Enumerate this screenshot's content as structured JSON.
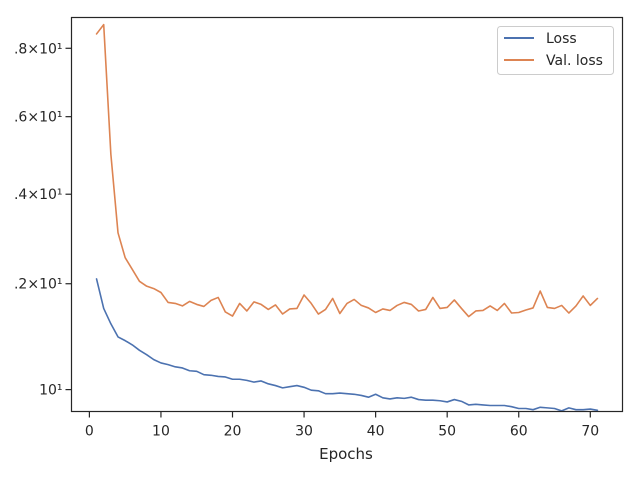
{
  "chart_data": {
    "type": "line",
    "xlabel": "Epochs",
    "ylabel": "",
    "title": "",
    "xlim": [
      -2.5,
      74.5
    ],
    "ylim": [
      9.63,
      18.98
    ],
    "yscale": "log",
    "grid": false,
    "legend_position": "top-right",
    "x_ticks": [
      0,
      10,
      20,
      30,
      40,
      50,
      60,
      70
    ],
    "x_tick_labels": [
      "0",
      "10",
      "20",
      "30",
      "40",
      "50",
      "60",
      "70"
    ],
    "y_ticks": [
      10,
      12,
      14,
      16,
      18
    ],
    "y_tick_labels": [
      "10¹",
      ".2×10¹",
      ".4×10¹",
      ".6×10¹",
      ".8×10¹"
    ],
    "series": [
      {
        "name": "Loss",
        "color": "#4c72b0",
        "x": [
          1,
          2,
          3,
          4,
          5,
          6,
          7,
          8,
          9,
          10,
          11,
          12,
          13,
          14,
          15,
          16,
          17,
          18,
          19,
          20,
          21,
          22,
          23,
          24,
          25,
          26,
          27,
          28,
          29,
          30,
          31,
          32,
          33,
          34,
          35,
          36,
          37,
          38,
          39,
          40,
          41,
          42,
          43,
          44,
          45,
          46,
          47,
          48,
          49,
          50,
          51,
          52,
          53,
          54,
          55,
          56,
          57,
          58,
          59,
          60,
          61,
          62,
          63,
          64,
          65,
          66,
          67,
          68,
          69,
          70,
          71
        ],
        "values": [
          12.1,
          11.5,
          11.2,
          10.95,
          10.88,
          10.8,
          10.7,
          10.62,
          10.53,
          10.47,
          10.44,
          10.4,
          10.38,
          10.33,
          10.32,
          10.26,
          10.25,
          10.23,
          10.22,
          10.18,
          10.18,
          10.16,
          10.13,
          10.15,
          10.1,
          10.07,
          10.03,
          10.05,
          10.07,
          10.04,
          9.99,
          9.98,
          9.93,
          9.93,
          9.94,
          9.93,
          9.92,
          9.9,
          9.87,
          9.92,
          9.86,
          9.84,
          9.86,
          9.85,
          9.87,
          9.83,
          9.82,
          9.82,
          9.81,
          9.79,
          9.83,
          9.8,
          9.74,
          9.75,
          9.74,
          9.73,
          9.73,
          9.73,
          9.71,
          9.68,
          9.68,
          9.66,
          9.7,
          9.69,
          9.68,
          9.64,
          9.69,
          9.66,
          9.66,
          9.67,
          9.65
        ]
      },
      {
        "name": "Val. loss",
        "color": "#dd8452",
        "x": [
          1,
          2,
          3,
          4,
          5,
          6,
          7,
          8,
          9,
          10,
          11,
          12,
          13,
          14,
          15,
          16,
          17,
          18,
          19,
          20,
          21,
          22,
          23,
          24,
          25,
          26,
          27,
          28,
          29,
          30,
          31,
          32,
          33,
          34,
          35,
          36,
          37,
          38,
          39,
          40,
          41,
          42,
          43,
          44,
          45,
          46,
          47,
          48,
          49,
          50,
          51,
          52,
          53,
          54,
          55,
          56,
          57,
          58,
          59,
          60,
          61,
          62,
          63,
          64,
          65,
          66,
          67,
          68,
          69,
          70,
          71
        ],
        "values": [
          18.45,
          18.75,
          15.0,
          13.1,
          12.55,
          12.3,
          12.05,
          11.95,
          11.9,
          11.82,
          11.62,
          11.6,
          11.55,
          11.64,
          11.58,
          11.54,
          11.66,
          11.72,
          11.43,
          11.35,
          11.6,
          11.45,
          11.63,
          11.58,
          11.48,
          11.57,
          11.39,
          11.49,
          11.5,
          11.77,
          11.6,
          11.39,
          11.48,
          11.7,
          11.4,
          11.6,
          11.68,
          11.56,
          11.51,
          11.42,
          11.49,
          11.46,
          11.56,
          11.62,
          11.58,
          11.45,
          11.48,
          11.72,
          11.5,
          11.52,
          11.67,
          11.5,
          11.34,
          11.45,
          11.46,
          11.55,
          11.46,
          11.6,
          11.41,
          11.42,
          11.47,
          11.51,
          11.85,
          11.52,
          11.5,
          11.56,
          11.41,
          11.55,
          11.75,
          11.56,
          11.7
        ]
      }
    ]
  }
}
